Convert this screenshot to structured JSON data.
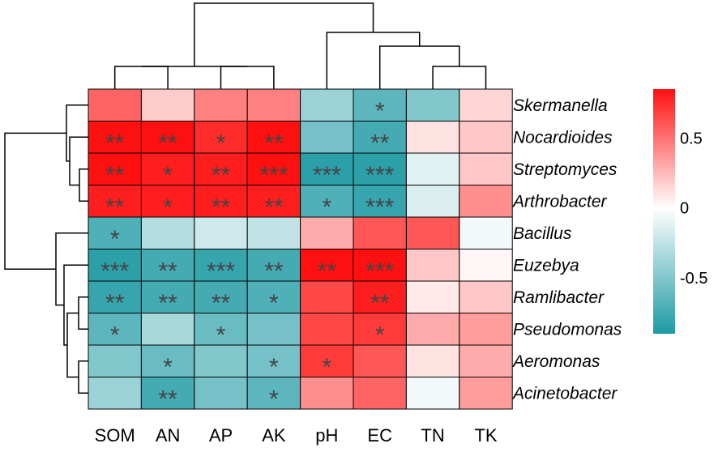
{
  "chart_data": {
    "type": "heatmap",
    "title": "",
    "columns": [
      "SOM",
      "AN",
      "AP",
      "AK",
      "pH",
      "EC",
      "TN",
      "TK"
    ],
    "rows": [
      "Skermanella",
      "Nocardioides",
      "Streptomyces",
      "Arthrobacter",
      "Bacillus",
      "Euzebya",
      "Ramlibacter",
      "Pseudomonas",
      "Aeromonas",
      "Acinetobacter"
    ],
    "values": [
      [
        0.55,
        0.18,
        0.45,
        0.45,
        -0.4,
        -0.65,
        -0.5,
        0.15
      ],
      [
        0.85,
        0.85,
        0.75,
        0.85,
        -0.55,
        -0.75,
        0.1,
        0.2
      ],
      [
        0.85,
        0.8,
        0.8,
        0.88,
        -0.85,
        -0.85,
        -0.12,
        0.2
      ],
      [
        0.8,
        0.8,
        0.8,
        0.8,
        -0.7,
        -0.8,
        -0.15,
        0.4
      ],
      [
        -0.7,
        -0.3,
        -0.2,
        -0.25,
        0.3,
        0.6,
        0.6,
        -0.05
      ],
      [
        -0.85,
        -0.75,
        -0.8,
        -0.75,
        0.85,
        0.88,
        0.2,
        0.03
      ],
      [
        -0.8,
        -0.75,
        -0.75,
        -0.7,
        0.65,
        0.8,
        0.08,
        0.2
      ],
      [
        -0.65,
        -0.35,
        -0.6,
        -0.55,
        0.65,
        0.7,
        0.3,
        0.35
      ],
      [
        -0.5,
        -0.6,
        -0.5,
        -0.55,
        0.7,
        0.6,
        0.1,
        0.3
      ],
      [
        -0.4,
        -0.75,
        -0.55,
        -0.65,
        0.4,
        0.55,
        -0.05,
        0.35
      ]
    ],
    "significance": [
      [
        "",
        "",
        "",
        "",
        "",
        "*",
        "",
        ""
      ],
      [
        "**",
        "**",
        "*",
        "**",
        "",
        "**",
        "",
        ""
      ],
      [
        "**",
        "*",
        "**",
        "***",
        "***",
        "***",
        "",
        ""
      ],
      [
        "**",
        "*",
        "**",
        "**",
        "*",
        "***",
        "",
        ""
      ],
      [
        "*",
        "",
        "",
        "",
        "",
        "",
        "",
        ""
      ],
      [
        "***",
        "**",
        "***",
        "**",
        "**",
        "***",
        "",
        ""
      ],
      [
        "**",
        "**",
        "**",
        "*",
        "",
        "**",
        "",
        ""
      ],
      [
        "*",
        "",
        "*",
        "",
        "",
        "*",
        "",
        ""
      ],
      [
        "",
        "*",
        "",
        "*",
        "*",
        "",
        "",
        ""
      ],
      [
        "",
        "**",
        "",
        "*",
        "",
        "",
        "",
        ""
      ]
    ],
    "color_scale": {
      "min": -0.9,
      "max": 0.85,
      "low_color": "#1E9AA4",
      "mid_color": "#FFFFFF",
      "high_color": "#FF1010",
      "ticks": [
        0.5,
        0,
        -0.5
      ],
      "tick_labels": [
        "0.5",
        "0",
        "-0.5"
      ]
    },
    "column_dendrogram": [
      [
        2,
        3
      ],
      [
        0,
        1
      ],
      [
        -1,
        -2
      ],
      [
        6,
        7
      ],
      [
        5,
        -4
      ],
      [
        4,
        -5
      ],
      [
        -3,
        -6
      ]
    ],
    "row_dendrogram": [
      [
        2,
        3
      ],
      [
        1,
        -1
      ],
      [
        0,
        -2
      ],
      [
        8,
        9
      ],
      [
        6,
        7
      ],
      [
        -4,
        -5
      ],
      [
        5,
        -6
      ],
      [
        4,
        -7
      ],
      [
        -3,
        -8
      ]
    ],
    "legend": "right"
  }
}
